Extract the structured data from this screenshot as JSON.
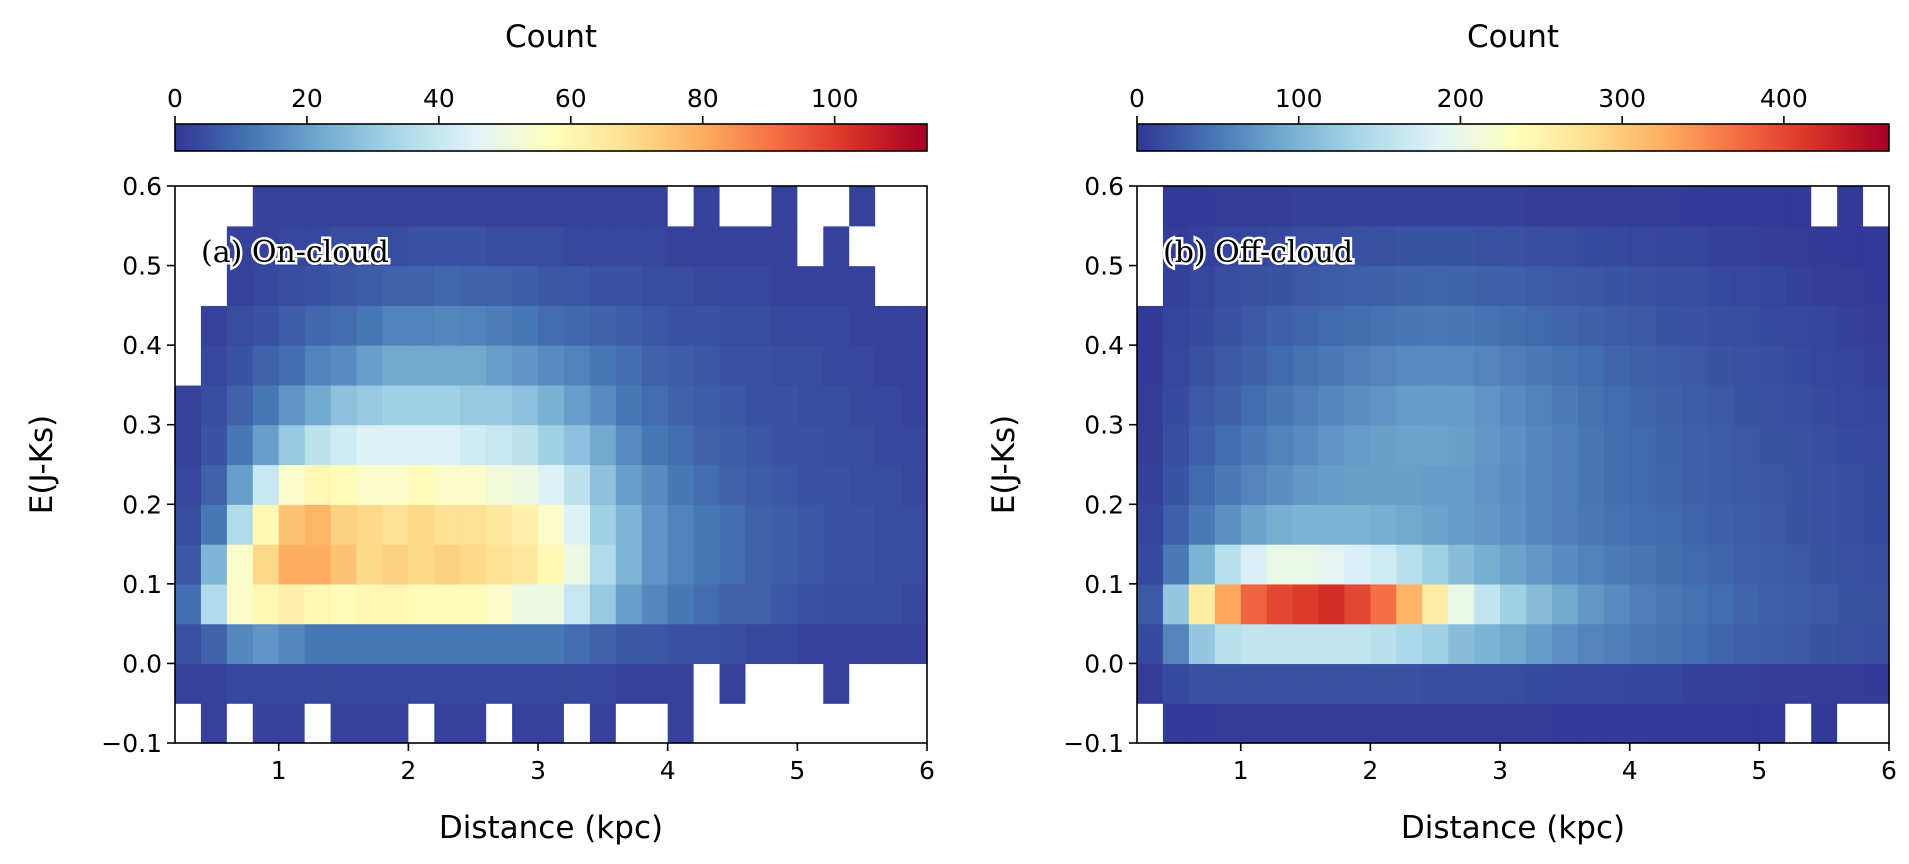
{
  "chart_data": [
    {
      "type": "hist2d",
      "annotation": "(a) On-cloud",
      "xlabel": "Distance (kpc)",
      "ylabel": "E(J-Ks)",
      "colorbar_label": "Count",
      "colormap": "RdYlBu_r",
      "clim": [
        0,
        114
      ],
      "cbar_ticks": [
        0,
        20,
        40,
        60,
        80,
        100
      ],
      "xlim": [
        0.2,
        6
      ],
      "ylim": [
        -0.1,
        0.6
      ],
      "xticks": [
        1,
        2,
        3,
        4,
        5,
        6
      ],
      "yticks": [
        {
          "value": -0.1,
          "label": "−0.1"
        },
        {
          "value": 0,
          "label": "0.0"
        },
        0.1,
        0.2,
        0.3,
        0.4,
        0.5,
        0.6
      ],
      "xbins": [
        0.2,
        0.4,
        0.6,
        0.8,
        1.0,
        1.2,
        1.4,
        1.6,
        1.8,
        2.0,
        2.2,
        2.4,
        2.6,
        2.8,
        3.0,
        3.2,
        3.4,
        3.6,
        3.8,
        4.0,
        4.2,
        4.4,
        4.6,
        4.8,
        5.0,
        5.2,
        5.4,
        5.6,
        5.8,
        6.0
      ],
      "ybins": [
        -0.1,
        -0.05,
        0,
        0.05,
        0.1,
        0.15,
        0.2,
        0.25,
        0.3,
        0.35,
        0.4,
        0.45,
        0.5,
        0.55,
        0.6
      ],
      "z": [
        [
          0,
          2,
          0,
          2,
          2,
          0,
          2,
          2,
          2,
          0,
          2,
          2,
          0,
          2,
          2,
          0,
          2,
          0,
          0,
          2,
          0,
          0,
          0,
          0,
          0,
          0,
          0,
          0,
          0
        ],
        [
          2,
          2,
          3,
          3,
          3,
          3,
          3,
          3,
          3,
          3,
          3,
          3,
          3,
          3,
          3,
          3,
          3,
          2,
          2,
          2,
          0,
          2,
          0,
          0,
          0,
          2,
          0,
          0,
          0
        ],
        [
          5,
          8,
          15,
          18,
          15,
          12,
          12,
          12,
          12,
          12,
          12,
          12,
          12,
          12,
          12,
          10,
          8,
          6,
          6,
          5,
          5,
          4,
          3,
          3,
          2,
          2,
          2,
          2,
          2
        ],
        [
          10,
          35,
          55,
          60,
          62,
          60,
          58,
          60,
          60,
          58,
          58,
          58,
          55,
          50,
          50,
          40,
          30,
          20,
          15,
          12,
          10,
          8,
          8,
          6,
          5,
          4,
          4,
          4,
          3
        ],
        [
          6,
          25,
          55,
          70,
          80,
          80,
          75,
          70,
          72,
          70,
          72,
          70,
          68,
          65,
          60,
          50,
          35,
          25,
          18,
          14,
          12,
          10,
          8,
          7,
          6,
          5,
          5,
          4,
          4
        ],
        [
          4,
          12,
          35,
          60,
          75,
          78,
          72,
          70,
          68,
          70,
          68,
          68,
          65,
          62,
          55,
          45,
          32,
          25,
          18,
          14,
          12,
          10,
          8,
          7,
          6,
          5,
          5,
          4,
          4
        ],
        [
          3,
          8,
          20,
          40,
          55,
          60,
          58,
          55,
          55,
          58,
          55,
          55,
          52,
          50,
          45,
          38,
          28,
          20,
          16,
          12,
          10,
          8,
          7,
          6,
          5,
          5,
          4,
          4,
          3
        ],
        [
          2,
          5,
          12,
          20,
          30,
          38,
          42,
          45,
          45,
          45,
          45,
          42,
          40,
          38,
          32,
          28,
          22,
          16,
          12,
          10,
          8,
          7,
          6,
          5,
          5,
          4,
          4,
          3,
          3
        ],
        [
          2,
          4,
          8,
          12,
          18,
          22,
          28,
          30,
          32,
          32,
          32,
          30,
          30,
          28,
          24,
          20,
          16,
          12,
          10,
          8,
          7,
          6,
          5,
          5,
          4,
          4,
          3,
          3,
          2
        ],
        [
          0,
          3,
          5,
          8,
          10,
          14,
          16,
          20,
          22,
          22,
          22,
          22,
          20,
          18,
          16,
          14,
          12,
          10,
          8,
          7,
          6,
          5,
          5,
          4,
          4,
          3,
          3,
          2,
          2
        ],
        [
          0,
          2,
          4,
          5,
          7,
          9,
          10,
          12,
          14,
          14,
          15,
          14,
          13,
          12,
          10,
          9,
          8,
          7,
          6,
          5,
          5,
          4,
          4,
          3,
          3,
          3,
          2,
          2,
          2
        ],
        [
          0,
          0,
          2,
          3,
          4,
          5,
          6,
          7,
          8,
          8,
          9,
          8,
          8,
          7,
          6,
          6,
          5,
          5,
          4,
          4,
          3,
          3,
          3,
          2,
          2,
          2,
          2,
          0,
          0
        ],
        [
          0,
          0,
          2,
          2,
          3,
          3,
          4,
          4,
          4,
          5,
          5,
          5,
          4,
          4,
          4,
          3,
          3,
          3,
          3,
          2,
          2,
          2,
          2,
          2,
          0,
          2,
          0,
          0,
          0
        ],
        [
          0,
          0,
          0,
          2,
          2,
          2,
          2,
          2,
          2,
          2,
          2,
          2,
          2,
          2,
          2,
          2,
          2,
          2,
          2,
          0,
          2,
          0,
          0,
          2,
          0,
          0,
          2,
          0,
          0
        ]
      ]
    },
    {
      "type": "hist2d",
      "annotation": "(b) Off-cloud",
      "xlabel": "Distance (kpc)",
      "ylabel": "E(J-Ks)",
      "colorbar_label": "Count",
      "colormap": "RdYlBu_r",
      "clim": [
        0,
        465
      ],
      "cbar_ticks": [
        0,
        100,
        200,
        300,
        400
      ],
      "xlim": [
        0.2,
        6
      ],
      "ylim": [
        -0.1,
        0.6
      ],
      "xticks": [
        1,
        2,
        3,
        4,
        5,
        6
      ],
      "yticks": [
        {
          "value": -0.1,
          "label": "−0.1"
        },
        {
          "value": 0,
          "label": "0.0"
        },
        0.1,
        0.2,
        0.3,
        0.4,
        0.5,
        0.6
      ],
      "xbins": [
        0.2,
        0.4,
        0.6,
        0.8,
        1.0,
        1.2,
        1.4,
        1.6,
        1.8,
        2.0,
        2.2,
        2.4,
        2.6,
        2.8,
        3.0,
        3.2,
        3.4,
        3.6,
        3.8,
        4.0,
        4.2,
        4.4,
        4.6,
        4.8,
        5.0,
        5.2,
        5.4,
        5.6,
        5.8,
        6.0
      ],
      "ybins": [
        -0.1,
        -0.05,
        0,
        0.05,
        0.1,
        0.15,
        0.2,
        0.25,
        0.3,
        0.35,
        0.4,
        0.45,
        0.5,
        0.55,
        0.6
      ],
      "z": [
        [
          0,
          4,
          4,
          5,
          5,
          5,
          5,
          5,
          5,
          5,
          5,
          5,
          5,
          5,
          5,
          5,
          4,
          4,
          4,
          4,
          3,
          3,
          3,
          2,
          2,
          0,
          2,
          0,
          0
        ],
        [
          5,
          15,
          20,
          20,
          20,
          20,
          20,
          20,
          20,
          20,
          20,
          18,
          18,
          18,
          16,
          15,
          14,
          12,
          12,
          10,
          10,
          8,
          8,
          8,
          6,
          6,
          5,
          5,
          4
        ],
        [
          15,
          60,
          120,
          150,
          160,
          160,
          160,
          160,
          160,
          150,
          140,
          130,
          110,
          100,
          90,
          80,
          70,
          60,
          55,
          50,
          45,
          40,
          35,
          30,
          28,
          25,
          22,
          20,
          18
        ],
        [
          25,
          120,
          260,
          330,
          380,
          400,
          410,
          420,
          400,
          370,
          320,
          260,
          200,
          160,
          130,
          110,
          90,
          75,
          65,
          55,
          50,
          45,
          40,
          35,
          30,
          28,
          25,
          22,
          20
        ],
        [
          15,
          50,
          100,
          150,
          180,
          200,
          200,
          190,
          180,
          170,
          150,
          130,
          110,
          95,
          85,
          75,
          65,
          58,
          52,
          48,
          42,
          38,
          35,
          30,
          28,
          25,
          22,
          20,
          18
        ],
        [
          10,
          30,
          50,
          70,
          85,
          95,
          100,
          100,
          100,
          95,
          90,
          85,
          80,
          75,
          70,
          62,
          55,
          50,
          45,
          40,
          38,
          35,
          30,
          28,
          25,
          22,
          20,
          18,
          15
        ],
        [
          8,
          22,
          38,
          50,
          60,
          68,
          75,
          80,
          82,
          82,
          82,
          80,
          78,
          72,
          68,
          60,
          55,
          48,
          42,
          38,
          35,
          32,
          28,
          26,
          24,
          22,
          20,
          18,
          15
        ],
        [
          6,
          18,
          30,
          40,
          50,
          58,
          65,
          72,
          78,
          82,
          85,
          85,
          82,
          75,
          70,
          62,
          55,
          48,
          42,
          38,
          34,
          30,
          28,
          25,
          22,
          20,
          18,
          15,
          12
        ],
        [
          5,
          15,
          25,
          32,
          40,
          48,
          55,
          62,
          68,
          72,
          78,
          80,
          78,
          72,
          65,
          58,
          52,
          45,
          40,
          35,
          32,
          28,
          25,
          22,
          20,
          18,
          15,
          12,
          10
        ],
        [
          4,
          12,
          20,
          26,
          32,
          38,
          44,
          50,
          55,
          60,
          64,
          65,
          64,
          60,
          55,
          50,
          45,
          40,
          35,
          32,
          28,
          25,
          22,
          20,
          18,
          15,
          12,
          10,
          8
        ],
        [
          2,
          10,
          15,
          20,
          25,
          30,
          35,
          38,
          42,
          45,
          48,
          50,
          48,
          46,
          42,
          38,
          35,
          32,
          28,
          25,
          22,
          20,
          18,
          16,
          14,
          12,
          10,
          8,
          6
        ],
        [
          0,
          8,
          12,
          16,
          20,
          22,
          25,
          28,
          30,
          32,
          34,
          35,
          34,
          32,
          30,
          28,
          26,
          24,
          22,
          20,
          18,
          16,
          14,
          12,
          10,
          8,
          6,
          5,
          4
        ],
        [
          0,
          5,
          8,
          10,
          12,
          14,
          16,
          18,
          20,
          20,
          22,
          22,
          22,
          20,
          20,
          18,
          16,
          15,
          14,
          12,
          10,
          10,
          8,
          8,
          6,
          5,
          4,
          3,
          2
        ],
        [
          0,
          2,
          4,
          5,
          6,
          6,
          8,
          8,
          8,
          8,
          8,
          8,
          8,
          8,
          8,
          6,
          6,
          6,
          6,
          5,
          5,
          4,
          3,
          3,
          2,
          2,
          0,
          2,
          0
        ]
      ]
    }
  ]
}
